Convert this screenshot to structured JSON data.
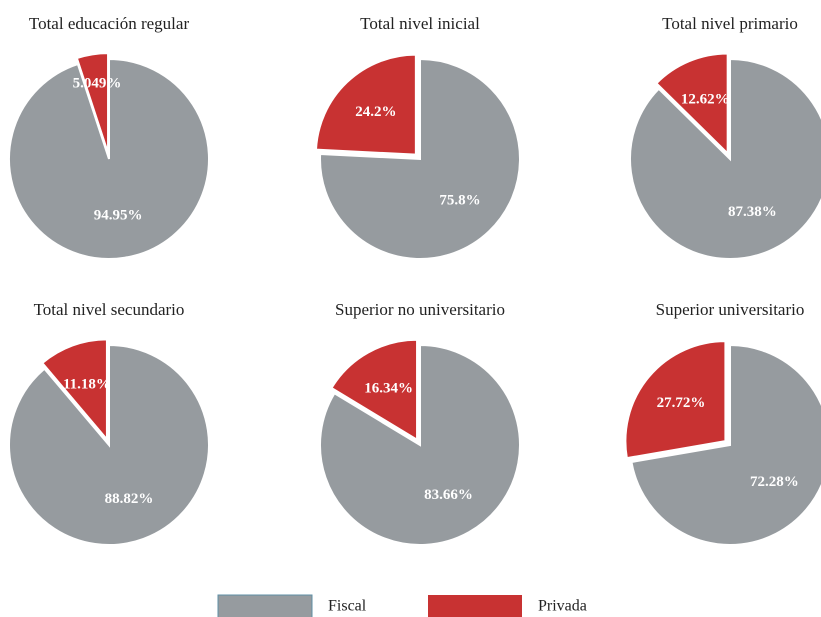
{
  "chart_data": [
    {
      "type": "pie",
      "title": "Total educación regular",
      "categories": [
        "Fiscal",
        "Privada"
      ],
      "values": [
        94.95,
        5.049
      ],
      "value_labels": [
        "94.95%",
        "5.049%"
      ],
      "colors": [
        "#969b9f",
        "#c83232"
      ]
    },
    {
      "type": "pie",
      "title": "Total nivel inicial",
      "categories": [
        "Fiscal",
        "Privada"
      ],
      "values": [
        75.8,
        24.2
      ],
      "value_labels": [
        "75.8%",
        "24.2%"
      ],
      "colors": [
        "#969b9f",
        "#c83232"
      ]
    },
    {
      "type": "pie",
      "title": "Total nivel primario",
      "categories": [
        "Fiscal",
        "Privada"
      ],
      "values": [
        87.38,
        12.62
      ],
      "value_labels": [
        "87.38%",
        "12.62%"
      ],
      "colors": [
        "#969b9f",
        "#c83232"
      ]
    },
    {
      "type": "pie",
      "title": "Total nivel secundario",
      "categories": [
        "Fiscal",
        "Privada"
      ],
      "values": [
        88.82,
        11.18
      ],
      "value_labels": [
        "88.82%",
        "11.18%"
      ],
      "colors": [
        "#969b9f",
        "#c83232"
      ]
    },
    {
      "type": "pie",
      "title": "Superior no universitario",
      "categories": [
        "Fiscal",
        "Privada"
      ],
      "values": [
        83.66,
        16.34
      ],
      "value_labels": [
        "83.66%",
        "16.34%"
      ],
      "colors": [
        "#969b9f",
        "#c83232"
      ]
    },
    {
      "type": "pie",
      "title": "Superior universitario",
      "categories": [
        "Fiscal",
        "Privada"
      ],
      "values": [
        72.28,
        27.72
      ],
      "value_labels": [
        "72.28%",
        "27.72%"
      ],
      "colors": [
        "#969b9f",
        "#c83232"
      ]
    }
  ]
}
